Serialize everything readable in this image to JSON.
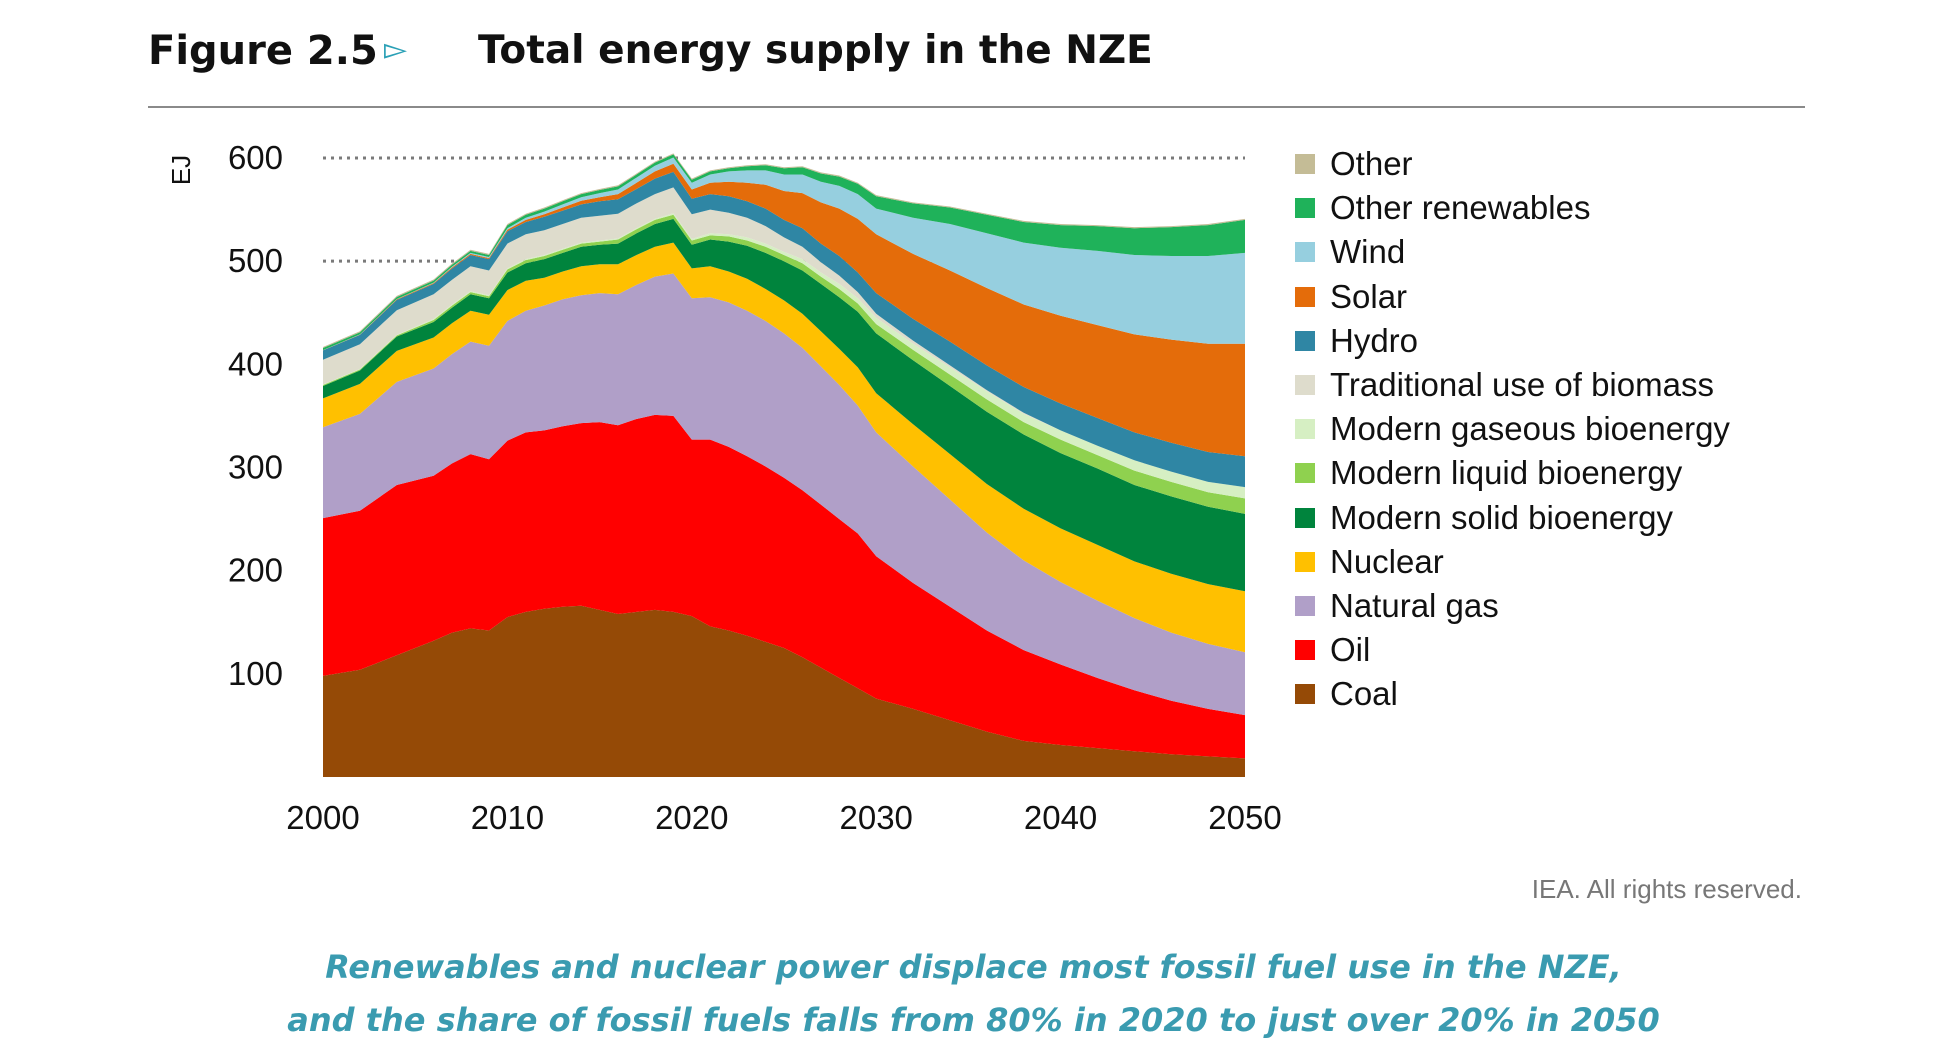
{
  "figure": {
    "number": "Figure 2.5",
    "arrow": "▻",
    "title": "Total energy supply in the NZE"
  },
  "credit": "IEA. All rights reserved.",
  "caption": {
    "line1": "Renewables and nuclear power displace most fossil fuel use in the NZE,",
    "line2": "and the share of fossil fuels falls from 80% in 2020 to just over 20% in 2050"
  },
  "chart_data": {
    "type": "area",
    "stacked": true,
    "title": "Total energy supply in the NZE",
    "ylabel": "EJ",
    "xlabel": "",
    "xlim": [
      2000,
      2050
    ],
    "ylim": [
      0,
      600
    ],
    "x_ticks": [
      2000,
      2010,
      2020,
      2030,
      2040,
      2050
    ],
    "y_ticks": [
      100,
      200,
      300,
      400,
      500,
      600
    ],
    "gridlines": [
      500,
      600
    ],
    "grid_style": "dotted",
    "legend_position": "right",
    "x": [
      2000,
      2002,
      2004,
      2006,
      2007,
      2008,
      2009,
      2010,
      2011,
      2012,
      2013,
      2014,
      2015,
      2016,
      2017,
      2018,
      2019,
      2020,
      2021,
      2022,
      2023,
      2024,
      2025,
      2026,
      2027,
      2028,
      2029,
      2030,
      2032,
      2034,
      2036,
      2038,
      2040,
      2042,
      2044,
      2046,
      2048,
      2050
    ],
    "series": [
      {
        "name": "Coal",
        "color": "#954a06",
        "values": [
          98,
          104,
          118,
          132,
          140,
          144,
          142,
          155,
          160,
          163,
          165,
          166,
          162,
          158,
          160,
          162,
          160,
          156,
          146,
          142,
          137,
          131,
          125,
          116,
          106,
          96,
          86,
          76,
          66,
          55,
          44,
          35,
          31,
          28,
          25,
          22,
          20,
          18
        ]
      },
      {
        "name": "Oil",
        "color": "#ff0000",
        "values": [
          153,
          154,
          165,
          160,
          164,
          169,
          166,
          171,
          174,
          173,
          175,
          177,
          182,
          183,
          187,
          189,
          190,
          171,
          181,
          178,
          174,
          170,
          165,
          162,
          158,
          154,
          150,
          138,
          122,
          110,
          98,
          88,
          78,
          68,
          59,
          52,
          46,
          42
        ]
      },
      {
        "name": "Natural gas",
        "color": "#b09fc8",
        "values": [
          88,
          94,
          100,
          104,
          106,
          109,
          110,
          116,
          118,
          121,
          123,
          124,
          125,
          127,
          130,
          134,
          138,
          137,
          138,
          140,
          141,
          141,
          140,
          138,
          134,
          130,
          124,
          120,
          113,
          104,
          95,
          87,
          80,
          75,
          70,
          66,
          63,
          61
        ]
      },
      {
        "name": "Nuclear",
        "color": "#ffc000",
        "values": [
          28,
          29,
          30,
          30,
          30,
          30,
          30,
          30,
          29,
          27,
          27,
          28,
          28,
          29,
          29,
          29,
          30,
          29,
          30,
          30,
          31,
          31,
          32,
          33,
          34,
          35,
          37,
          38,
          41,
          44,
          47,
          50,
          52,
          54,
          55,
          57,
          58,
          59
        ]
      },
      {
        "name": "Modern solid bioenergy",
        "color": "#00843d",
        "values": [
          12,
          13,
          14,
          15,
          15,
          16,
          16,
          17,
          17,
          18,
          18,
          19,
          19,
          20,
          21,
          22,
          23,
          23,
          26,
          29,
          32,
          35,
          38,
          42,
          46,
          50,
          54,
          58,
          62,
          66,
          70,
          72,
          73,
          74,
          74,
          75,
          75,
          75
        ]
      },
      {
        "name": "Modern liquid bioenergy",
        "color": "#8fd14f",
        "values": [
          1,
          1,
          1,
          2,
          2,
          2,
          2,
          3,
          3,
          3,
          3,
          3,
          3,
          4,
          4,
          4,
          4,
          4,
          4,
          5,
          5,
          6,
          6,
          7,
          7,
          8,
          8,
          9,
          10,
          11,
          12,
          12,
          13,
          13,
          14,
          14,
          14,
          15
        ]
      },
      {
        "name": "Modern gaseous bioenergy",
        "color": "#d6efc3",
        "values": [
          0.5,
          0.5,
          0.5,
          1,
          1,
          1,
          1,
          1,
          1,
          1,
          1,
          1,
          1,
          1,
          1,
          1,
          1.5,
          1.5,
          2,
          2,
          3,
          3,
          3,
          4,
          4,
          5,
          5,
          6,
          6,
          7,
          8,
          8,
          9,
          9,
          10,
          10,
          10,
          11
        ]
      },
      {
        "name": "Traditional use of biomass",
        "color": "#dedccc",
        "values": [
          24,
          24,
          24,
          24,
          24,
          24,
          24,
          24,
          24,
          24,
          24,
          24,
          24,
          24,
          24,
          24,
          25,
          24,
          23,
          21,
          19,
          17,
          14,
          12,
          10,
          8,
          6,
          4,
          3,
          2,
          1,
          1,
          0,
          0,
          0,
          0,
          0,
          0
        ]
      },
      {
        "name": "Hydro",
        "color": "#2f86a4",
        "values": [
          9,
          9,
          10,
          10,
          11,
          11,
          11,
          12,
          12,
          13,
          13,
          13,
          14,
          14,
          14,
          15,
          15,
          15,
          15,
          16,
          16,
          17,
          17,
          18,
          18,
          19,
          19,
          20,
          21,
          23,
          24,
          25,
          26,
          27,
          27,
          28,
          29,
          30
        ]
      },
      {
        "name": "Solar",
        "color": "#e46c0a",
        "values": [
          0.2,
          0.3,
          0.5,
          0.7,
          1,
          1,
          1,
          1.5,
          2,
          2.5,
          3,
          3.5,
          4,
          5,
          6,
          7,
          8,
          9,
          11,
          14,
          18,
          23,
          28,
          34,
          40,
          46,
          52,
          57,
          63,
          69,
          75,
          80,
          85,
          90,
          95,
          100,
          105,
          109
        ]
      },
      {
        "name": "Wind",
        "color": "#96cfdf",
        "values": [
          0.1,
          0.2,
          0.3,
          0.5,
          0.7,
          1,
          1,
          1.5,
          2,
          2.5,
          3,
          3.5,
          4,
          4.5,
          5,
          5.5,
          6,
          6.5,
          8,
          10,
          12,
          14,
          16,
          18,
          20,
          22,
          24,
          25,
          35,
          45,
          53,
          60,
          66,
          72,
          77,
          81,
          85,
          88
        ]
      },
      {
        "name": "Other renewables",
        "color": "#1fb25a",
        "values": [
          2,
          2,
          2,
          2,
          2,
          2,
          2,
          3,
          3,
          3,
          3,
          3,
          3,
          3,
          3,
          3,
          3,
          3,
          3,
          3,
          4,
          5,
          6,
          7,
          8,
          9,
          10,
          12,
          14,
          16,
          18,
          20,
          22,
          24,
          26,
          28,
          30,
          32
        ]
      },
      {
        "name": "Other",
        "color": "#c4bc96",
        "values": [
          1,
          1,
          1,
          1,
          1,
          1,
          1,
          1,
          1,
          1,
          1,
          1,
          1,
          1,
          1,
          1,
          1,
          1,
          1,
          1,
          1,
          1,
          1,
          1,
          1,
          1,
          1,
          1,
          1,
          1,
          1,
          1,
          1,
          1,
          1,
          1,
          1,
          1
        ]
      }
    ]
  }
}
